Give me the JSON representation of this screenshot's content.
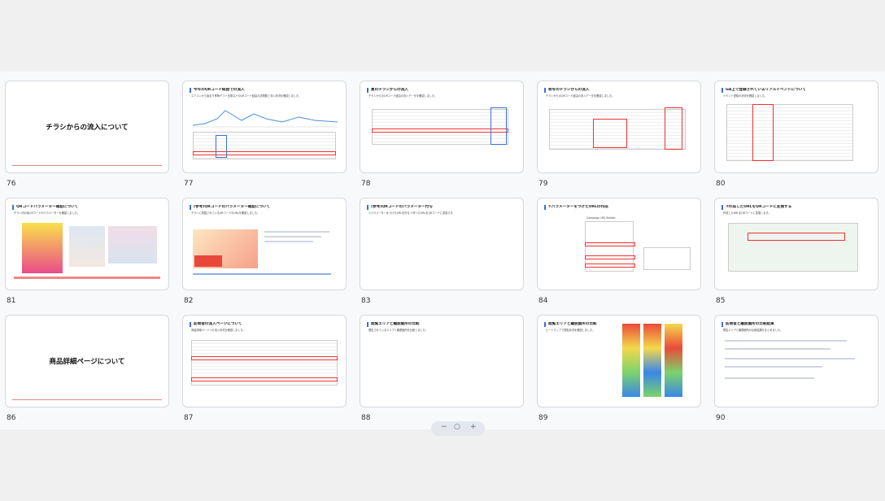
{
  "slides": [
    {
      "num": "76",
      "title": "チラシからの流入について",
      "center": true
    },
    {
      "num": "77",
      "title": "今年のQRコード経由での流入",
      "body": "エアコンから始まり季節ギフト在庫などのQRコード経由の訪問数と流入状況を確認しました。"
    },
    {
      "num": "78",
      "title": "夏のチラシからの流入",
      "body": "チラシからのQRコード経由の流入データを確認しました。"
    },
    {
      "num": "79",
      "title": "秋冬のチラシからの流入",
      "body": "チラシからのQRコード経由の流入データを確認しました。"
    },
    {
      "num": "80",
      "title": "GA上で登録されているリアルイベントについて",
      "body": "イベント登録の状況を確認しました。"
    },
    {
      "num": "81",
      "title": "QRコードパラメーター確認について",
      "body": "チラシ内の各QRコードのパラメーターを確認しました。"
    },
    {
      "num": "82",
      "title": "(参考)QRコードのパラメーター確認について",
      "body": "チラシに掲載されているQRコードのURLを確認しました。"
    },
    {
      "num": "83",
      "title": "(参考)QRコードのパラメーター付与",
      "body": "①パラメーターをつけたURLを作る ②作ったURLをQRコードに変換する"
    },
    {
      "num": "84",
      "title": "①パラメーターをつけたURLの作成",
      "body": "Campaign URL Builder"
    },
    {
      "num": "85",
      "title": "②作成したURLをQRコードに変換する",
      "body": "作成したURLをQRコードに変換します。"
    },
    {
      "num": "86",
      "title": "商品詳細ページについて",
      "center": true
    },
    {
      "num": "87",
      "title": "訪問者の流入ページについて",
      "body": "商品詳細ページへの流入状況を確認しました。"
    },
    {
      "num": "88",
      "title": "閲覧エリアと離脱箇所の比較",
      "body": "閲覧されているエリアと離脱箇所を比較しました。"
    },
    {
      "num": "89",
      "title": "閲覧エリアと離脱箇所の比較",
      "body": "ヒートマップで閲覧状況を確認しました。"
    },
    {
      "num": "90",
      "title": "訪問者と離脱箇所の比較結果",
      "body": "閲覧エリアと離脱箇所の比較結果をまとめました。"
    }
  ],
  "colors": {
    "accent": "#3b6fd8",
    "highlight": "#e33333"
  }
}
